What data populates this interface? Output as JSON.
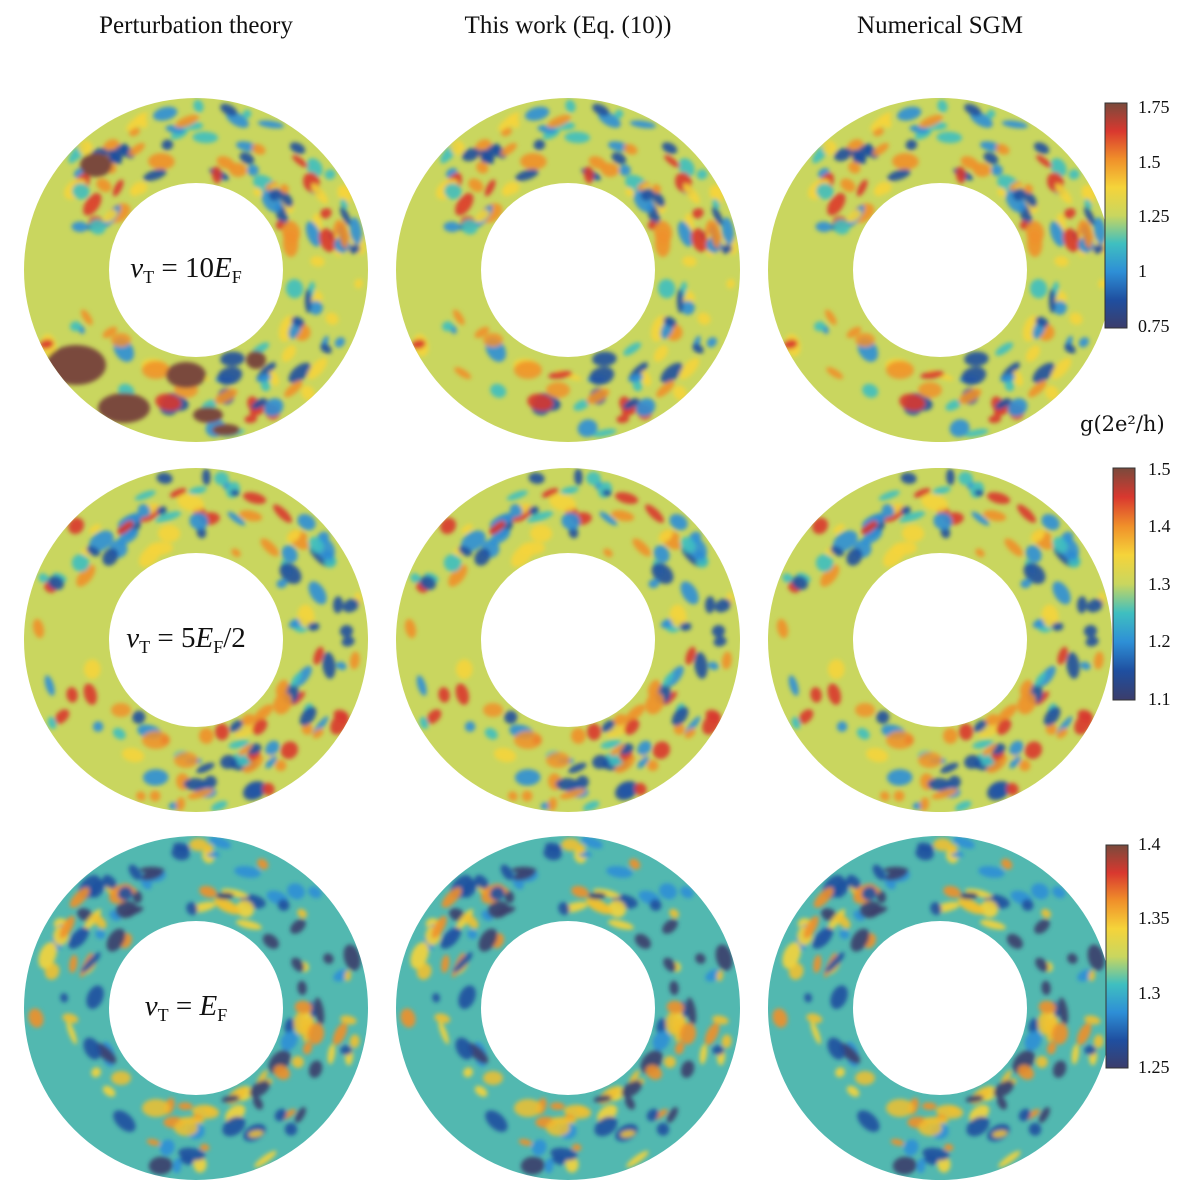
{
  "figure": {
    "column_titles": [
      "Perturbation theory",
      "This work (Eq. (10))",
      "Numerical  SGM"
    ],
    "row_labels": [
      {
        "var": "v",
        "sub": "T",
        "rhs_pre": "= 10",
        "rhs_var": "E",
        "rhs_sub": "F",
        "rhs_post": ""
      },
      {
        "var": "v",
        "sub": "T",
        "rhs_pre": "= 5",
        "rhs_var": "E",
        "rhs_sub": "F",
        "rhs_post": "/2"
      },
      {
        "var": "v",
        "sub": "T",
        "rhs_pre": "= ",
        "rhs_var": "E",
        "rhs_sub": "F",
        "rhs_post": ""
      }
    ],
    "colorbar_label": "g(2e²/h)",
    "colorbars": [
      {
        "ticks": [
          "1.75",
          "1.5",
          "1.25",
          "1",
          "0.75"
        ]
      },
      {
        "ticks": [
          "1.5",
          "1.4",
          "1.3",
          "1.2",
          "1.1"
        ]
      },
      {
        "ticks": [
          "1.4",
          "1.35",
          "1.3",
          "1.25"
        ]
      }
    ],
    "colormap": [
      "#3b3d6b",
      "#1f4fa0",
      "#2e8fd6",
      "#3fbfc0",
      "#c9d65f",
      "#f5d43a",
      "#f0902a",
      "#d9382f",
      "#7a4a3c"
    ]
  }
}
